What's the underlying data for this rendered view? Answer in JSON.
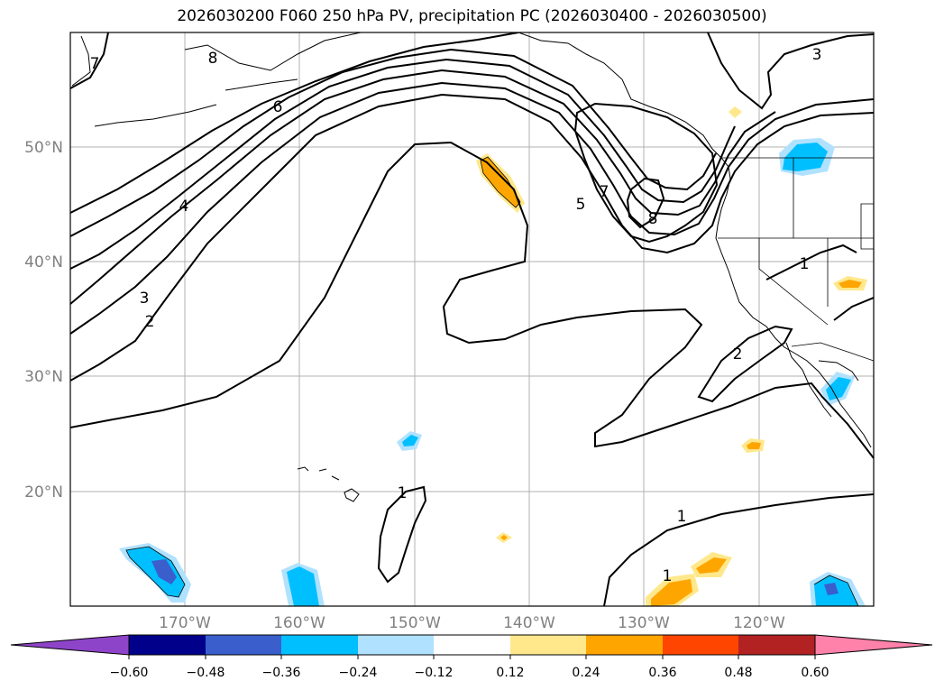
{
  "title": "2026030200 F060 250 hPa PV, precipitation PC (2026030400 - 2026030500)",
  "lat_labels": [
    "50°N",
    "40°N",
    "30°N",
    "20°N"
  ],
  "lon_labels": [
    "170°W",
    "160°W",
    "150°W",
    "140°W",
    "130°W",
    "120°W"
  ],
  "contour_labels": [
    "8",
    "7",
    "6",
    "4",
    "3",
    "2",
    "5",
    "7",
    "8",
    "3",
    "1",
    "2",
    "1",
    "1",
    "1"
  ],
  "colorbar": {
    "tick_labels": [
      "−0.60",
      "−0.48",
      "−0.36",
      "−0.24",
      "−0.12",
      "0.12",
      "0.24",
      "0.36",
      "0.48",
      "0.60"
    ],
    "colors": [
      "#8e44c9",
      "#00008b",
      "#3a5fcd",
      "#00bfff",
      "#b0e2ff",
      "#ffffff",
      "#ffe88c",
      "#ffa500",
      "#ff4500",
      "#b22222",
      "#ff82ab"
    ]
  }
}
